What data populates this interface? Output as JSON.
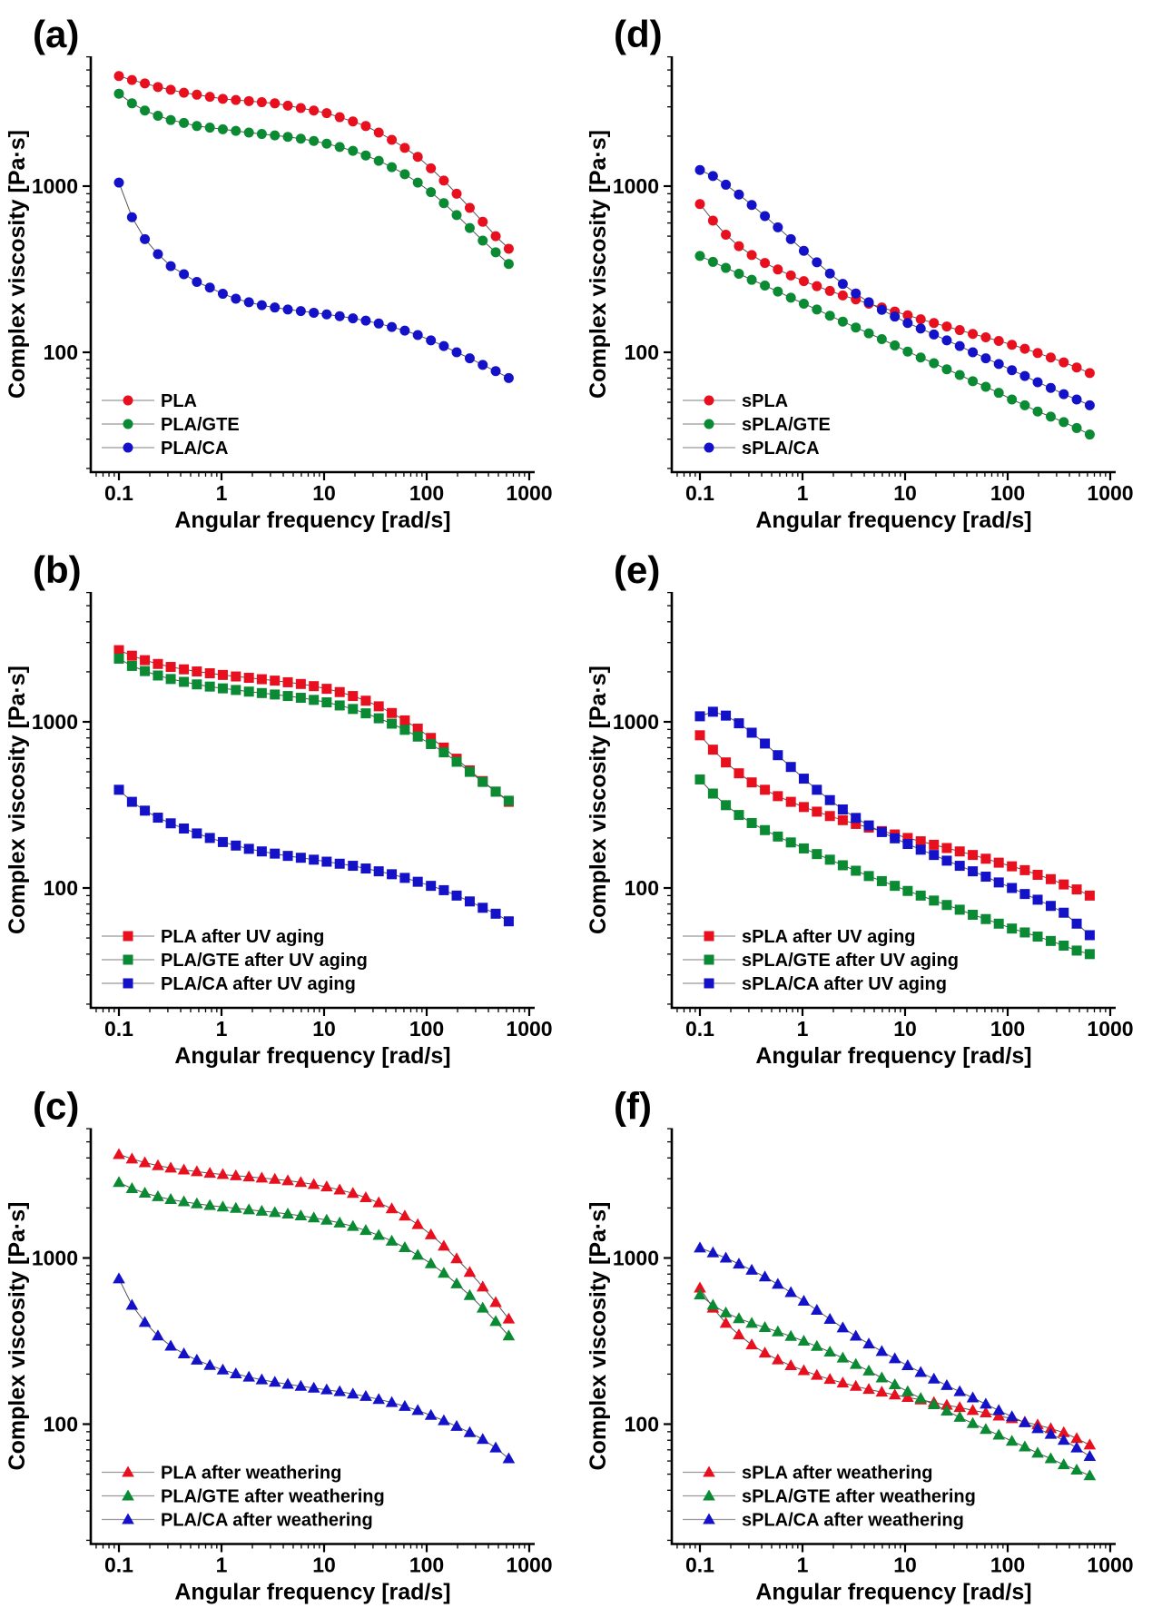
{
  "figure": {
    "background": "#ffffff",
    "description_text_visible": "",
    "x_axis_label": "Angular frequency [rad/s]",
    "y_axis_label": "Complex viscosity [Pa·s]"
  },
  "colors": {
    "red": "#e8101e",
    "green": "#0a8a32",
    "blue": "#1412c8",
    "axis": "#000000",
    "connector": "#555555",
    "legend_line": "#999999",
    "text": "#000000"
  },
  "chart_data": {
    "type": "scatter",
    "scale": "log-log",
    "xlabel": "Angular frequency [rad/s]",
    "ylabel": "Complex viscosity [Pa·s]",
    "x_tick_labels": [
      "0.1",
      "1",
      "10",
      "100",
      "1000"
    ],
    "x_tick_values": [
      0.1,
      1,
      10,
      100,
      1000
    ],
    "y_tick_labels": [
      "100",
      "1000"
    ],
    "y_tick_values": [
      100,
      1000
    ],
    "xlim": [
      0.053,
      1150
    ],
    "ylim": [
      19,
      6000
    ],
    "legend_position": "bottom-left",
    "x_values": [
      0.1,
      0.134,
      0.179,
      0.24,
      0.32,
      0.43,
      0.575,
      0.77,
      1.03,
      1.38,
      1.85,
      2.47,
      3.31,
      4.43,
      5.93,
      7.94,
      10.6,
      14.2,
      19.1,
      25.5,
      34.1,
      45.7,
      61.2,
      81.9,
      110,
      147,
      196,
      263,
      352,
      471,
      631
    ],
    "panels": [
      {
        "panel_label": "(a)",
        "marker": "circle",
        "series": [
          {
            "name": "PLA",
            "color_key": "red",
            "y": [
              4600,
              4350,
              4150,
              3950,
              3800,
              3650,
              3550,
              3450,
              3350,
              3300,
              3250,
              3200,
              3150,
              3050,
              2950,
              2850,
              2750,
              2600,
              2450,
              2300,
              2100,
              1900,
              1700,
              1500,
              1280,
              1080,
              900,
              740,
              610,
              500,
              420
            ]
          },
          {
            "name": "PLA/GTE",
            "color_key": "green",
            "y": [
              3600,
              3150,
              2850,
              2650,
              2500,
              2400,
              2300,
              2250,
              2200,
              2150,
              2100,
              2060,
              2020,
              1980,
              1930,
              1870,
              1800,
              1720,
              1630,
              1530,
              1420,
              1300,
              1180,
              1050,
              920,
              790,
              670,
              560,
              470,
              400,
              340
            ]
          },
          {
            "name": "PLA/CA",
            "color_key": "blue",
            "y": [
              1050,
              650,
              480,
              390,
              330,
              295,
              265,
              245,
              225,
              210,
              200,
              192,
              186,
              181,
              177,
              173,
              169,
              165,
              160,
              155,
              149,
              142,
              135,
              127,
              118,
              109,
              100,
              92,
              84,
              77,
              70
            ]
          }
        ]
      },
      {
        "panel_label": "(d)",
        "marker": "circle",
        "series": [
          {
            "name": "sPLA",
            "color_key": "red",
            "y": [
              780,
              620,
              510,
              435,
              385,
              345,
              315,
              290,
              268,
              250,
              234,
              220,
              208,
              196,
              186,
              176,
              167,
              158,
              150,
              143,
              136,
              129,
              123,
              117,
              111,
              105,
              99,
              93,
              87,
              81,
              75
            ]
          },
          {
            "name": "sPLA/GTE",
            "color_key": "green",
            "y": [
              380,
              350,
              322,
              297,
              273,
              252,
              232,
              213,
              196,
              181,
              166,
              153,
              141,
              130,
              120,
              110,
              101,
              93,
              86,
              79,
              73,
              67,
              62,
              57,
              52,
              48,
              44,
              41,
              38,
              35,
              32
            ]
          },
          {
            "name": "sPLA/CA",
            "color_key": "blue",
            "y": [
              1250,
              1150,
              1020,
              890,
              770,
              660,
              565,
              480,
              408,
              348,
              298,
              258,
              226,
              200,
              180,
              164,
              150,
              139,
              128,
              118,
              109,
              100,
              92,
              85,
              78,
              72,
              66,
              61,
              56,
              52,
              48
            ]
          }
        ]
      },
      {
        "panel_label": "(b)",
        "marker": "square",
        "series": [
          {
            "name": "PLA after UV aging",
            "color_key": "red",
            "y": [
              2700,
              2500,
              2350,
              2230,
              2140,
              2070,
              2010,
              1960,
              1915,
              1875,
              1840,
              1805,
              1770,
              1730,
              1690,
              1640,
              1580,
              1510,
              1430,
              1340,
              1240,
              1130,
              1020,
              910,
              800,
              700,
              600,
              510,
              440,
              380,
              330
            ]
          },
          {
            "name": "PLA/GTE after UV aging",
            "color_key": "green",
            "y": [
              2400,
              2170,
              2020,
              1900,
              1810,
              1740,
              1680,
              1630,
              1590,
              1555,
              1520,
              1490,
              1460,
              1430,
              1395,
              1355,
              1310,
              1255,
              1195,
              1125,
              1050,
              975,
              895,
              815,
              735,
              655,
              575,
              500,
              435,
              380,
              335
            ]
          },
          {
            "name": "PLA/CA after UV aging",
            "color_key": "blue",
            "y": [
              390,
              330,
              292,
              265,
              245,
              228,
              213,
              200,
              189,
              180,
              172,
              166,
              161,
              156,
              152,
              148,
              144,
              140,
              136,
              131,
              126,
              121,
              115,
              109,
              103,
              97,
              90,
              83,
              76,
              70,
              63
            ]
          }
        ]
      },
      {
        "panel_label": "(e)",
        "marker": "square",
        "series": [
          {
            "name": "sPLA after UV aging",
            "color_key": "red",
            "y": [
              830,
              680,
              570,
              490,
              432,
              390,
              357,
              330,
              307,
              288,
              271,
              256,
              243,
              231,
              220,
              210,
              200,
              191,
              182,
              174,
              166,
              158,
              150,
              142,
              135,
              128,
              120,
              113,
              105,
              98,
              90
            ]
          },
          {
            "name": "sPLA/GTE after UV aging",
            "color_key": "green",
            "y": [
              450,
              370,
              315,
              275,
              246,
              223,
              204,
              188,
              173,
              160,
              148,
              137,
              127,
              118,
              110,
              103,
              96,
              90,
              84,
              79,
              74,
              69,
              65,
              61,
              57,
              54,
              51,
              48,
              45,
              42,
              40
            ]
          },
          {
            "name": "sPLA/CA after UV aging",
            "color_key": "blue",
            "y": [
              1080,
              1150,
              1090,
              980,
              860,
              740,
              630,
              535,
              455,
              390,
              338,
              297,
              264,
              238,
              217,
              199,
              184,
              170,
              158,
              146,
              136,
              126,
              117,
              108,
              100,
              92,
              85,
              78,
              71,
              61,
              52
            ]
          }
        ]
      },
      {
        "panel_label": "(c)",
        "marker": "triangle",
        "series": [
          {
            "name": "PLA after weathering",
            "color_key": "red",
            "y": [
              4200,
              3950,
              3750,
              3600,
              3480,
              3390,
              3310,
              3240,
              3180,
              3130,
              3080,
              3030,
              2980,
              2920,
              2850,
              2770,
              2680,
              2570,
              2450,
              2310,
              2150,
              1980,
              1790,
              1590,
              1380,
              1180,
              990,
              820,
              670,
              540,
              430
            ]
          },
          {
            "name": "PLA/GTE after weathering",
            "color_key": "green",
            "y": [
              2850,
              2620,
              2460,
              2340,
              2250,
              2180,
              2120,
              2070,
              2030,
              1990,
              1950,
              1915,
              1880,
              1840,
              1795,
              1745,
              1690,
              1625,
              1550,
              1465,
              1370,
              1265,
              1155,
              1040,
              925,
              810,
              700,
              595,
              500,
              415,
              340
            ]
          },
          {
            "name": "PLA/CA after weathering",
            "color_key": "blue",
            "y": [
              750,
              520,
              410,
              340,
              295,
              265,
              243,
              226,
              212,
              201,
              192,
              185,
              179,
              174,
              169,
              165,
              161,
              157,
              152,
              147,
              141,
              135,
              128,
              121,
              113,
              105,
              97,
              89,
              81,
              72,
              62
            ]
          }
        ]
      },
      {
        "panel_label": "(f)",
        "marker": "triangle",
        "series": [
          {
            "name": "sPLA after weathering",
            "color_key": "red",
            "y": [
              660,
              500,
              405,
              345,
              300,
              268,
              244,
              225,
              210,
              197,
              186,
              177,
              169,
              162,
              156,
              150,
              145,
              140,
              135,
              130,
              126,
              121,
              117,
              112,
              108,
              103,
              99,
              94,
              89,
              82,
              75
            ]
          },
          {
            "name": "sPLA/GTE after weathering",
            "color_key": "green",
            "y": [
              600,
              520,
              468,
              432,
              405,
              382,
              360,
              338,
              316,
              294,
              272,
              250,
              229,
              209,
              190,
              173,
              157,
              143,
              131,
              120,
              110,
              101,
              93,
              86,
              79,
              73,
              67,
              62,
              57,
              53,
              49
            ]
          },
          {
            "name": "sPLA/CA after weathering",
            "color_key": "blue",
            "y": [
              1150,
              1075,
              1000,
              920,
              845,
              770,
              695,
              620,
              550,
              485,
              428,
              380,
              339,
              304,
              274,
              248,
              225,
              205,
              187,
              171,
              157,
              144,
              132,
              121,
              111,
              102,
              94,
              87,
              80,
              72,
              64
            ]
          }
        ]
      }
    ]
  }
}
